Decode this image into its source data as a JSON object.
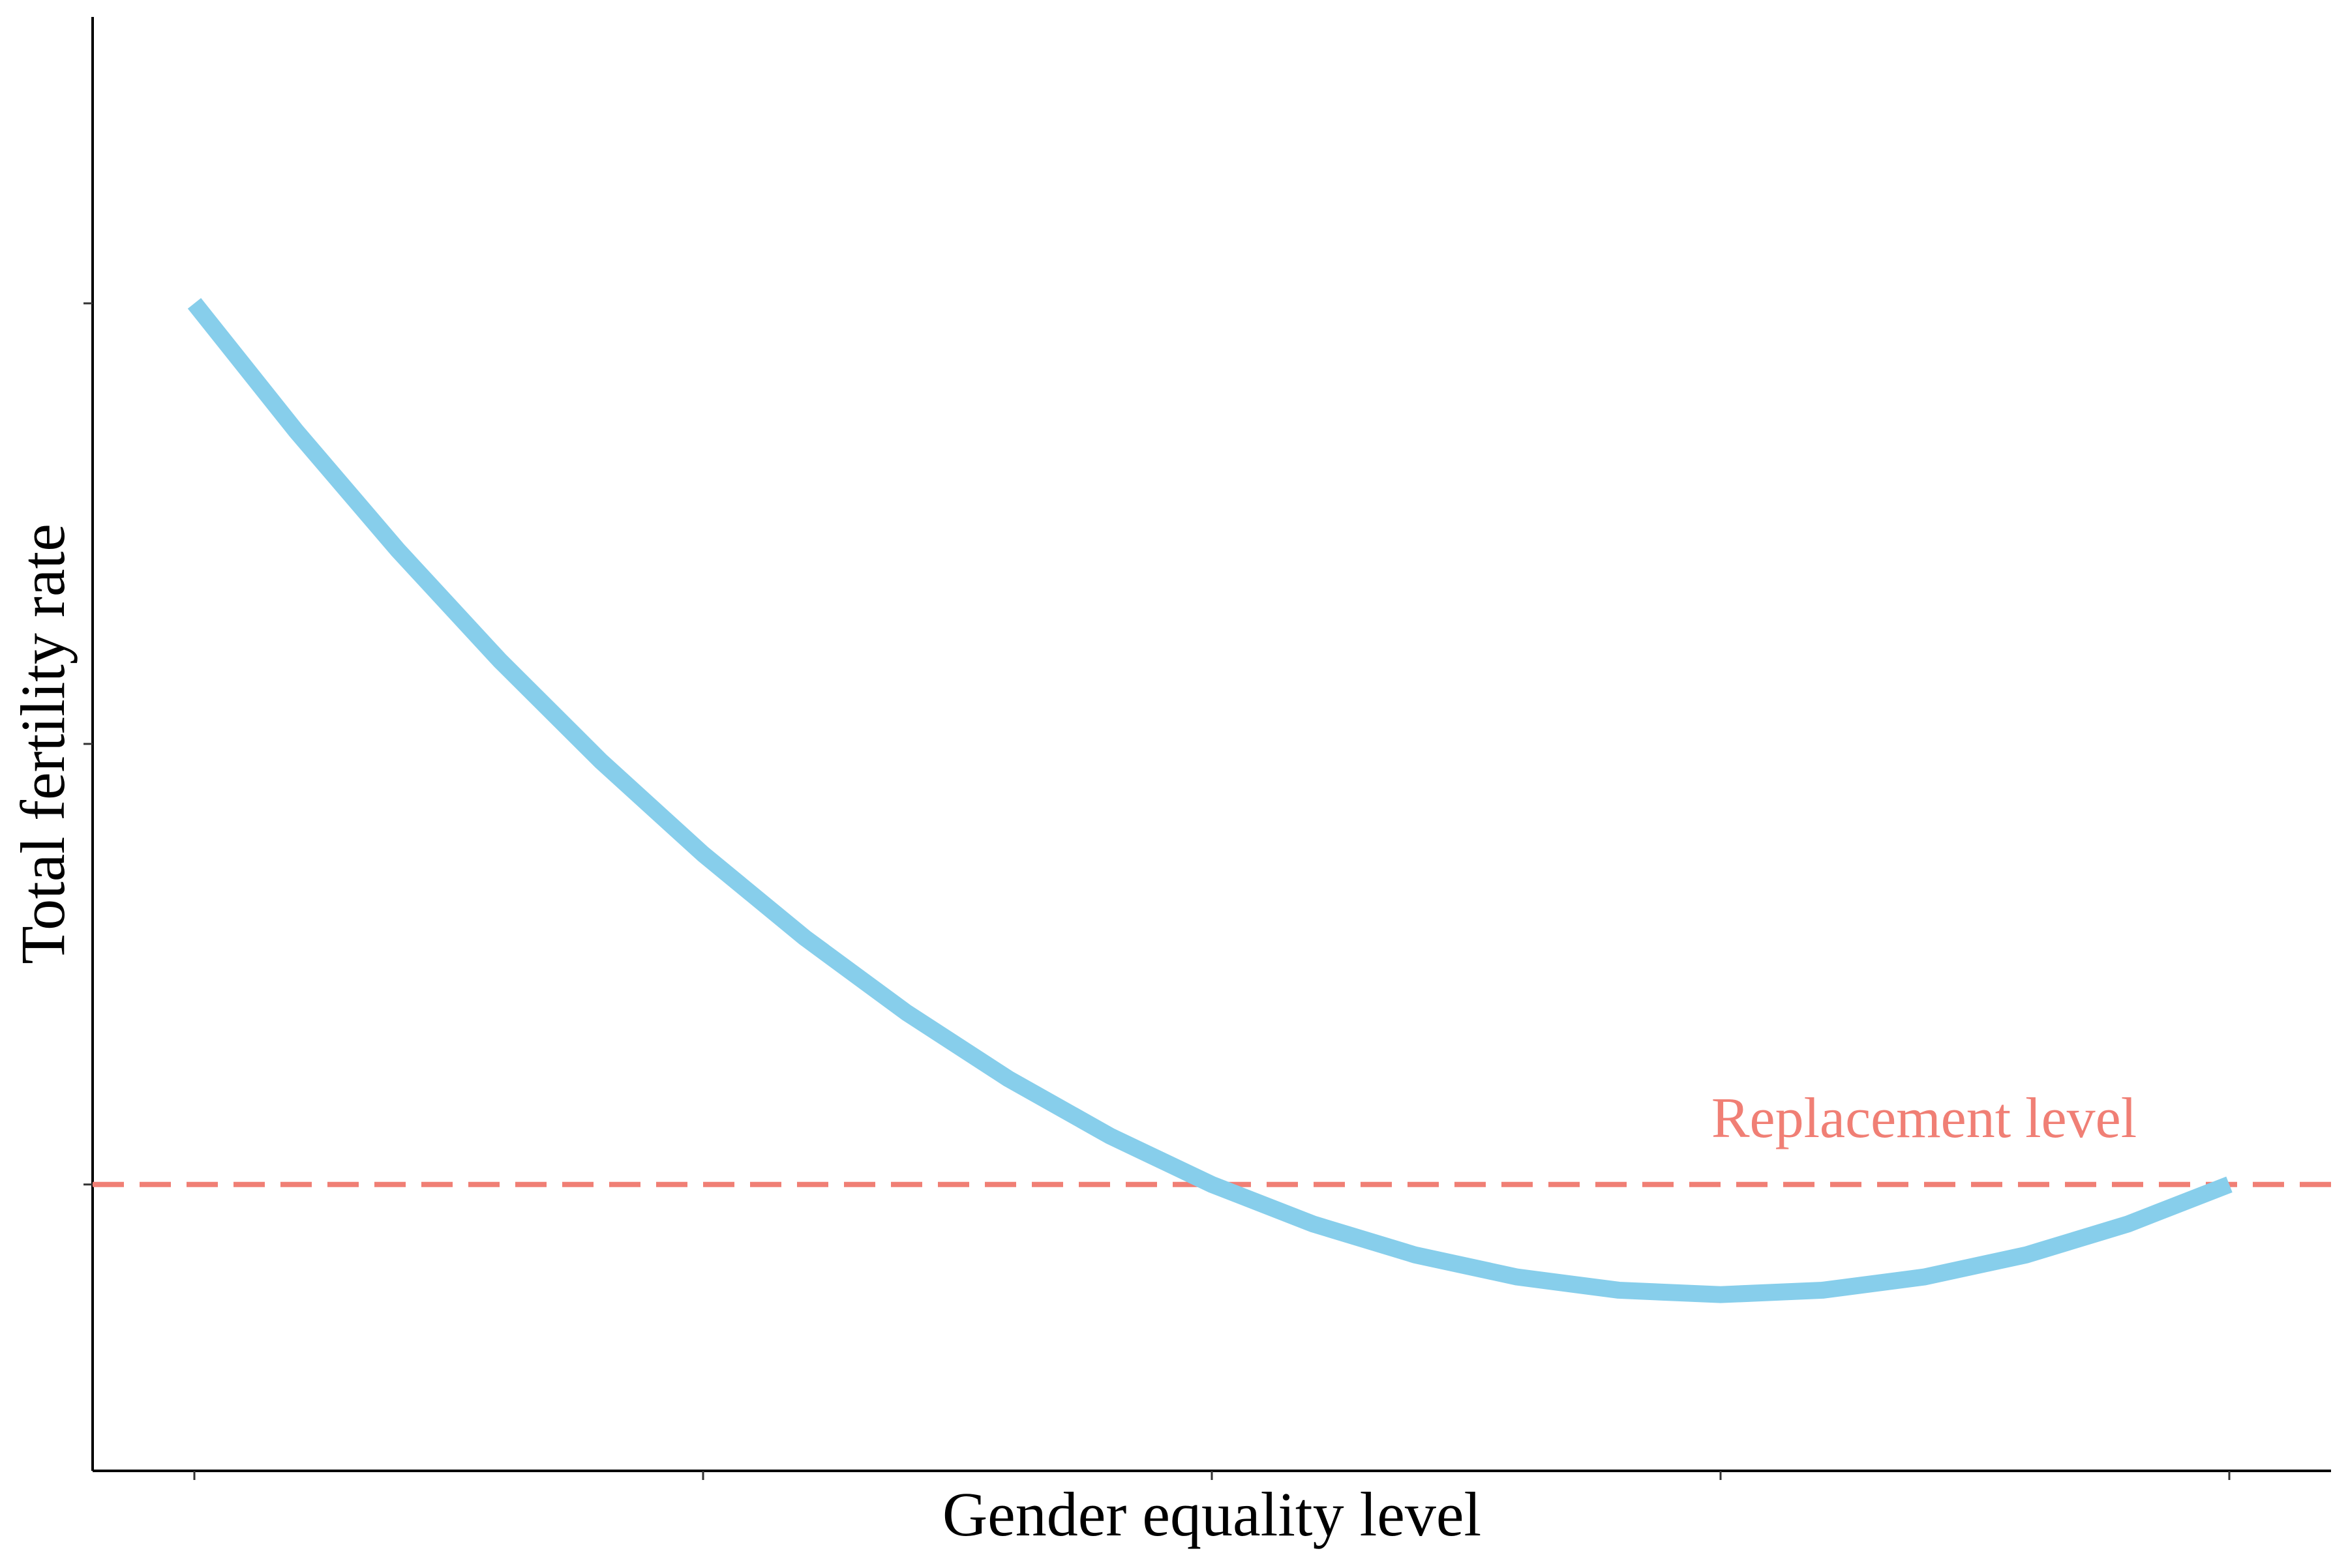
{
  "chart_data": {
    "type": "line",
    "title": "",
    "xlabel": "Gender equality level",
    "ylabel": "Total fertility rate",
    "x_tick_labels": [],
    "y_tick_labels": [],
    "xlim": [
      -0.1,
      2.1
    ],
    "ylim": [
      -0.65,
      2.65
    ],
    "x_ticks": [
      0,
      0.5,
      1,
      1.5,
      2
    ],
    "y_ticks": [
      0,
      1,
      2
    ],
    "grid": false,
    "legend": "none",
    "series": [
      {
        "color": "#87CEEB",
        "x": [
          0,
          0.1,
          0.2,
          0.3,
          0.4,
          0.5,
          0.6,
          0.7,
          0.8,
          0.9,
          1.0,
          1.1,
          1.2,
          1.3,
          1.4,
          1.5,
          1.6,
          1.7,
          1.8,
          1.9,
          2.0
        ],
        "y": [
          2.0,
          1.71,
          1.44,
          1.19,
          0.96,
          0.75,
          0.56,
          0.39,
          0.24,
          0.11,
          0.0,
          -0.09,
          -0.16,
          -0.21,
          -0.24,
          -0.25,
          -0.24,
          -0.21,
          -0.16,
          -0.09,
          0.0
        ]
      }
    ],
    "reference_line": {
      "label": "Replacement level",
      "y": 0,
      "color": "#F07F75",
      "style": "dashed"
    }
  }
}
